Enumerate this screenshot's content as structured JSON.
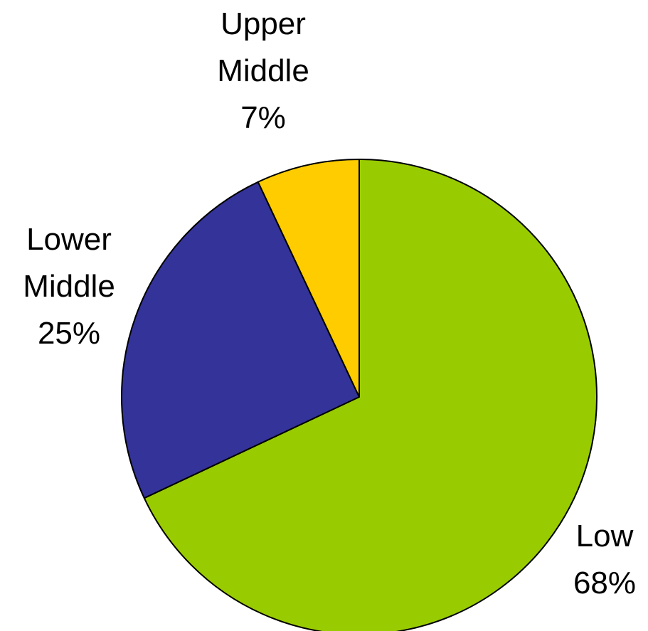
{
  "chart_data": {
    "type": "pie",
    "start_angle_deg": 0,
    "direction": "clockwise",
    "slices": [
      {
        "name": "Low",
        "value": 68,
        "label_lines": [
          "Low",
          "68%"
        ],
        "color": "#99CC00"
      },
      {
        "name": "Lower Middle",
        "value": 25,
        "label_lines": [
          "Lower",
          "Middle",
          "25%"
        ],
        "color": "#333399"
      },
      {
        "name": "Upper Middle",
        "value": 7,
        "label_lines": [
          "Upper",
          "Middle",
          "7%"
        ],
        "color": "#FFCC00"
      }
    ],
    "legend": "none"
  }
}
